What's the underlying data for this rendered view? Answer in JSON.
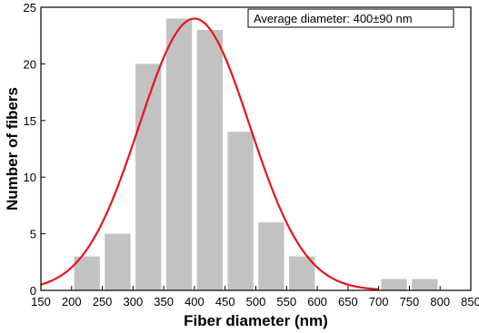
{
  "chart_data": {
    "type": "bar",
    "xlabel": "Fiber diameter (nm)",
    "ylabel": "Number of fibers",
    "xlim": [
      150,
      850
    ],
    "ylim": [
      0,
      25
    ],
    "x_ticks": [
      150,
      200,
      250,
      300,
      350,
      400,
      450,
      500,
      550,
      600,
      650,
      700,
      750,
      800,
      850
    ],
    "y_ticks": [
      0,
      5,
      10,
      15,
      20,
      25
    ],
    "bin_width": 50,
    "bins": [
      {
        "x": 250,
        "value": 3
      },
      {
        "x": 300,
        "value": 5
      },
      {
        "x": 350,
        "value": 20
      },
      {
        "x": 400,
        "value": 24
      },
      {
        "x": 450,
        "value": 23
      },
      {
        "x": 500,
        "value": 14
      },
      {
        "x": 550,
        "value": 6
      },
      {
        "x": 600,
        "value": 3
      },
      {
        "x": 750,
        "value": 1
      },
      {
        "x": 800,
        "value": 1
      }
    ],
    "fit": {
      "type": "gaussian",
      "mean": 400,
      "peak": 24,
      "sigma": 90
    },
    "annotation": "Average diameter: 400±90 nm",
    "legend_position": "top-right",
    "grid": false,
    "colors": {
      "bars": "#c2c2c2",
      "fit": "#e8141b",
      "axes": "#000000"
    }
  }
}
